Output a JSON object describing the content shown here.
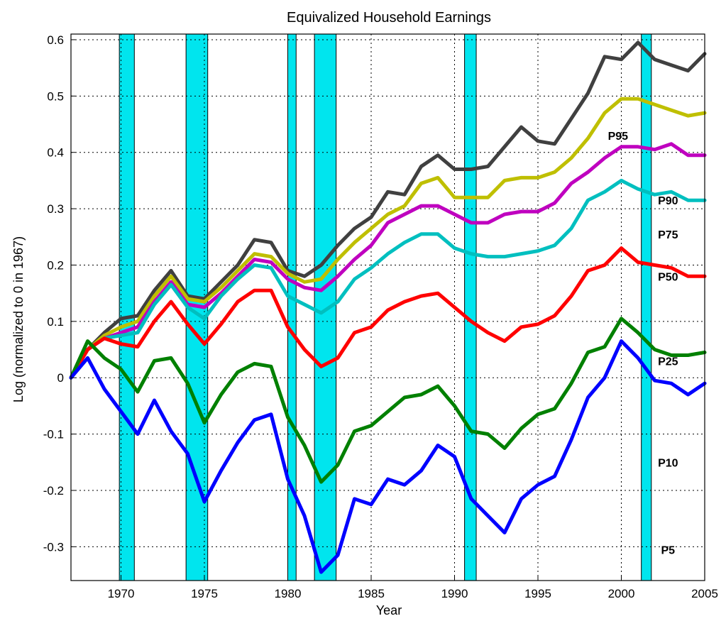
{
  "chart_data": {
    "type": "line",
    "title": "Equivalized Household Earnings",
    "xlabel": "Year",
    "ylabel": "Log (normalized to 0 in 1967)",
    "xlim": [
      1967,
      2005
    ],
    "ylim": [
      -0.36,
      0.61
    ],
    "x_ticks": [
      1970,
      1975,
      1980,
      1985,
      1990,
      1995,
      2000,
      2005
    ],
    "y_ticks": [
      -0.3,
      -0.2,
      -0.1,
      0,
      0.1,
      0.2,
      0.3,
      0.4,
      0.5,
      0.6
    ],
    "grid": true,
    "recessions": [
      [
        1969.9,
        1970.8
      ],
      [
        1973.9,
        1975.2
      ],
      [
        1980.0,
        1980.5
      ],
      [
        1981.6,
        1982.9
      ],
      [
        1990.6,
        1991.3
      ],
      [
        2001.2,
        2001.8
      ]
    ],
    "recession_color": "#00e5ee",
    "x": [
      1967,
      1968,
      1969,
      1970,
      1971,
      1972,
      1973,
      1974,
      1975,
      1976,
      1977,
      1978,
      1979,
      1980,
      1981,
      1982,
      1983,
      1984,
      1985,
      1986,
      1987,
      1988,
      1989,
      1990,
      1991,
      1992,
      1993,
      1994,
      1995,
      1996,
      1997,
      1998,
      1999,
      2000,
      2001,
      2002,
      2003,
      2004,
      2005
    ],
    "series": [
      {
        "name": "P95",
        "color": "#404040",
        "label_at": [
          1999.8,
          0.43
        ],
        "values": [
          0,
          0.05,
          0.08,
          0.105,
          0.11,
          0.155,
          0.19,
          0.145,
          0.14,
          0.17,
          0.2,
          0.245,
          0.24,
          0.19,
          0.18,
          0.2,
          0.235,
          0.265,
          0.285,
          0.33,
          0.325,
          0.375,
          0.395,
          0.37,
          0.37,
          0.375,
          0.41,
          0.445,
          0.42,
          0.415,
          0.46,
          0.505,
          0.57,
          0.565,
          0.595,
          0.565,
          0.555,
          0.545,
          0.575
        ]
      },
      {
        "name": "P90",
        "color": "#bfbf00",
        "label_at": [
          2002.8,
          0.315
        ],
        "values": [
          0,
          0.05,
          0.075,
          0.09,
          0.1,
          0.145,
          0.18,
          0.14,
          0.135,
          0.16,
          0.19,
          0.22,
          0.215,
          0.185,
          0.17,
          0.175,
          0.21,
          0.24,
          0.265,
          0.29,
          0.305,
          0.345,
          0.355,
          0.32,
          0.32,
          0.32,
          0.35,
          0.355,
          0.355,
          0.365,
          0.39,
          0.425,
          0.47,
          0.495,
          0.495,
          0.485,
          0.475,
          0.465,
          0.47
        ]
      },
      {
        "name": "P75",
        "color": "#bf00bf",
        "label_at": [
          2002.8,
          0.255
        ],
        "values": [
          0,
          0.05,
          0.07,
          0.08,
          0.09,
          0.135,
          0.17,
          0.13,
          0.125,
          0.15,
          0.18,
          0.21,
          0.205,
          0.175,
          0.16,
          0.155,
          0.18,
          0.21,
          0.235,
          0.275,
          0.29,
          0.305,
          0.305,
          0.29,
          0.275,
          0.275,
          0.29,
          0.295,
          0.295,
          0.31,
          0.345,
          0.365,
          0.39,
          0.41,
          0.41,
          0.405,
          0.415,
          0.395,
          0.395
        ]
      },
      {
        "name": "P50",
        "color": "#00bfbf",
        "label_at": [
          2002.8,
          0.18
        ],
        "values": [
          0,
          0.05,
          0.07,
          0.075,
          0.08,
          0.13,
          0.165,
          0.125,
          0.105,
          0.145,
          0.175,
          0.2,
          0.195,
          0.145,
          0.13,
          0.115,
          0.135,
          0.175,
          0.195,
          0.22,
          0.24,
          0.255,
          0.255,
          0.23,
          0.22,
          0.215,
          0.215,
          0.22,
          0.225,
          0.235,
          0.265,
          0.315,
          0.33,
          0.35,
          0.335,
          0.325,
          0.33,
          0.315,
          0.315
        ]
      },
      {
        "name": "P25",
        "color": "#ff0000",
        "label_at": [
          2002.8,
          0.03
        ],
        "values": [
          0,
          0.05,
          0.07,
          0.06,
          0.055,
          0.1,
          0.135,
          0.095,
          0.06,
          0.095,
          0.135,
          0.155,
          0.155,
          0.09,
          0.05,
          0.02,
          0.035,
          0.08,
          0.09,
          0.12,
          0.135,
          0.145,
          0.15,
          0.125,
          0.1,
          0.08,
          0.065,
          0.09,
          0.095,
          0.11,
          0.145,
          0.19,
          0.2,
          0.23,
          0.205,
          0.2,
          0.195,
          0.18,
          0.18
        ]
      },
      {
        "name": "P10",
        "color": "#008000",
        "label_at": [
          2002.8,
          -0.15
        ],
        "values": [
          0,
          0.065,
          0.035,
          0.015,
          -0.025,
          0.03,
          0.035,
          -0.01,
          -0.08,
          -0.03,
          0.01,
          0.025,
          0.02,
          -0.07,
          -0.12,
          -0.185,
          -0.155,
          -0.095,
          -0.085,
          -0.06,
          -0.035,
          -0.03,
          -0.015,
          -0.05,
          -0.095,
          -0.1,
          -0.125,
          -0.09,
          -0.065,
          -0.055,
          -0.01,
          0.045,
          0.055,
          0.105,
          0.08,
          0.05,
          0.04,
          0.04,
          0.045
        ]
      },
      {
        "name": "P5",
        "color": "#0000ff",
        "label_at": [
          2002.8,
          -0.305
        ],
        "values": [
          0,
          0.035,
          -0.02,
          -0.06,
          -0.1,
          -0.04,
          -0.095,
          -0.135,
          -0.22,
          -0.165,
          -0.115,
          -0.075,
          -0.065,
          -0.18,
          -0.245,
          -0.345,
          -0.315,
          -0.215,
          -0.225,
          -0.18,
          -0.19,
          -0.165,
          -0.12,
          -0.14,
          -0.215,
          -0.245,
          -0.275,
          -0.215,
          -0.19,
          -0.175,
          -0.11,
          -0.035,
          0,
          0.065,
          0.035,
          -0.005,
          -0.01,
          -0.03,
          -0.01
        ]
      }
    ]
  }
}
